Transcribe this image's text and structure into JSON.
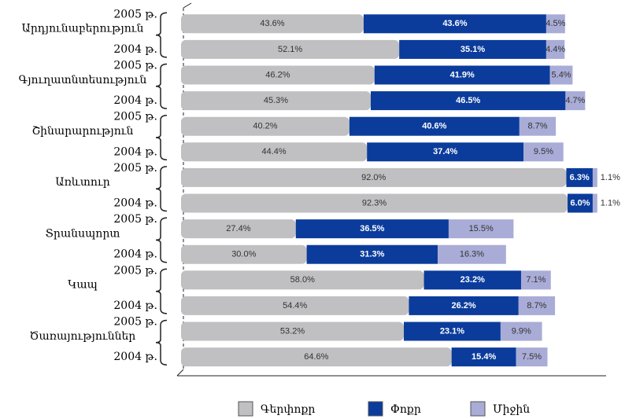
{
  "chart_data": {
    "type": "bar",
    "groups": [
      "Արդյունաբերություն",
      "Գյուղատնտեսություն",
      "Շինարարություն",
      "Առևտուր",
      "Տրանսպորտ",
      "Կապ",
      "Ծառայություններ"
    ],
    "categories": [
      "2005 թ.",
      "2004 թ.",
      "2005 թ.",
      "2004 թ.",
      "2005 թ.",
      "2004 թ.",
      "2005 թ.",
      "2004 թ.",
      "2005 թ.",
      "2004 թ.",
      "2005 թ.",
      "2004 թ.",
      "2005 թ.",
      "2004 թ."
    ],
    "xlim": [
      0,
      100
    ],
    "series": [
      {
        "name": "Գերփոքր",
        "color": "#c0c0c2",
        "values": [
          43.6,
          52.1,
          46.2,
          45.3,
          40.2,
          44.4,
          92.0,
          92.3,
          27.4,
          30.0,
          58.0,
          54.4,
          53.2,
          64.6
        ],
        "value_labels": [
          "43.6%",
          "52.1%",
          "46.2%",
          "45.3%",
          "40.2%",
          "44.4%",
          "92.0%",
          "92.3%",
          "27.4%",
          "30.0%",
          "58.0%",
          "54.4%",
          "53.2%",
          "64.6%"
        ]
      },
      {
        "name": "Փոքր",
        "color": "#0b3c9c",
        "values": [
          43.6,
          35.1,
          41.9,
          46.5,
          40.6,
          37.4,
          6.3,
          6.0,
          36.5,
          31.3,
          23.2,
          26.2,
          23.1,
          15.4
        ],
        "value_labels": [
          "43.6%",
          "35.1%",
          "41.9%",
          "46.5%",
          "40.6%",
          "37.4%",
          "6.3%",
          "6.0%",
          "36.5%",
          "31.3%",
          "23.2%",
          "26.2%",
          "23.1%",
          "15.4%"
        ]
      },
      {
        "name": "Միջին",
        "color": "#a9acd6",
        "values": [
          4.5,
          4.4,
          5.4,
          4.7,
          8.7,
          9.5,
          1.1,
          1.1,
          15.5,
          16.3,
          7.1,
          8.7,
          9.9,
          7.5
        ],
        "value_labels": [
          "4.5%",
          "4.4%",
          "5.4%",
          "4.7%",
          "8.7%",
          "9.5%",
          "1.1%",
          "1.1%",
          "15.5%",
          "16.3%",
          "7.1%",
          "8.7%",
          "9.9%",
          "7.5%"
        ]
      }
    ]
  }
}
